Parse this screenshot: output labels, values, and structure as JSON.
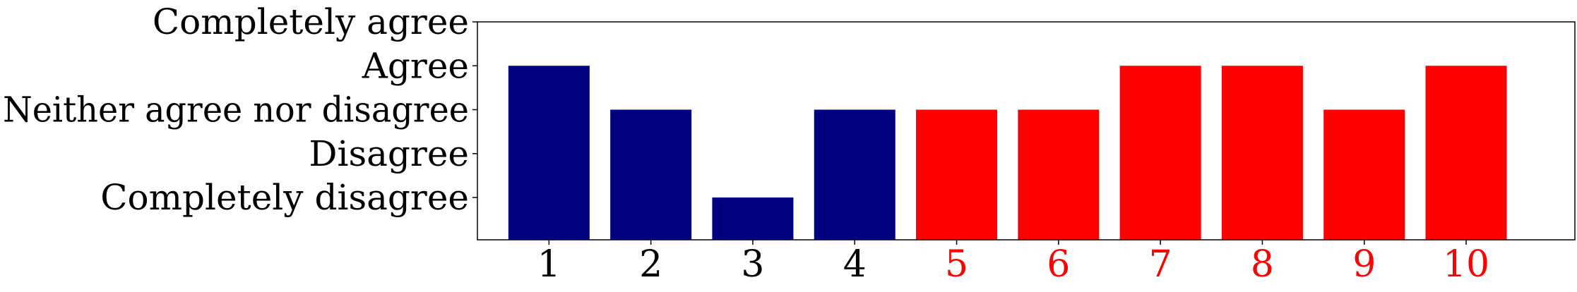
{
  "chart_data": {
    "type": "bar",
    "title": "",
    "xlabel": "",
    "ylabel": "",
    "categories": [
      "1",
      "2",
      "3",
      "4",
      "5",
      "6",
      "7",
      "8",
      "9",
      "10"
    ],
    "values": [
      4,
      3,
      1,
      3,
      3,
      3,
      4,
      4,
      3,
      4
    ],
    "ylim": [
      0,
      5
    ],
    "y_ticks": [
      {
        "value": 1,
        "label": "Completely disagree"
      },
      {
        "value": 2,
        "label": "Disagree"
      },
      {
        "value": 3,
        "label": "Neither agree nor disagree"
      },
      {
        "value": 4,
        "label": "Agree"
      },
      {
        "value": 5,
        "label": "Completely agree"
      }
    ],
    "grid": false,
    "legend": "none",
    "bar_colors": [
      "#000080",
      "#000080",
      "#000080",
      "#000080",
      "#ff0000",
      "#ff0000",
      "#ff0000",
      "#ff0000",
      "#ff0000",
      "#ff0000"
    ],
    "x_tick_colors": [
      "#000000",
      "#000000",
      "#000000",
      "#000000",
      "#ff0000",
      "#ff0000",
      "#ff0000",
      "#ff0000",
      "#ff0000",
      "#ff0000"
    ]
  }
}
